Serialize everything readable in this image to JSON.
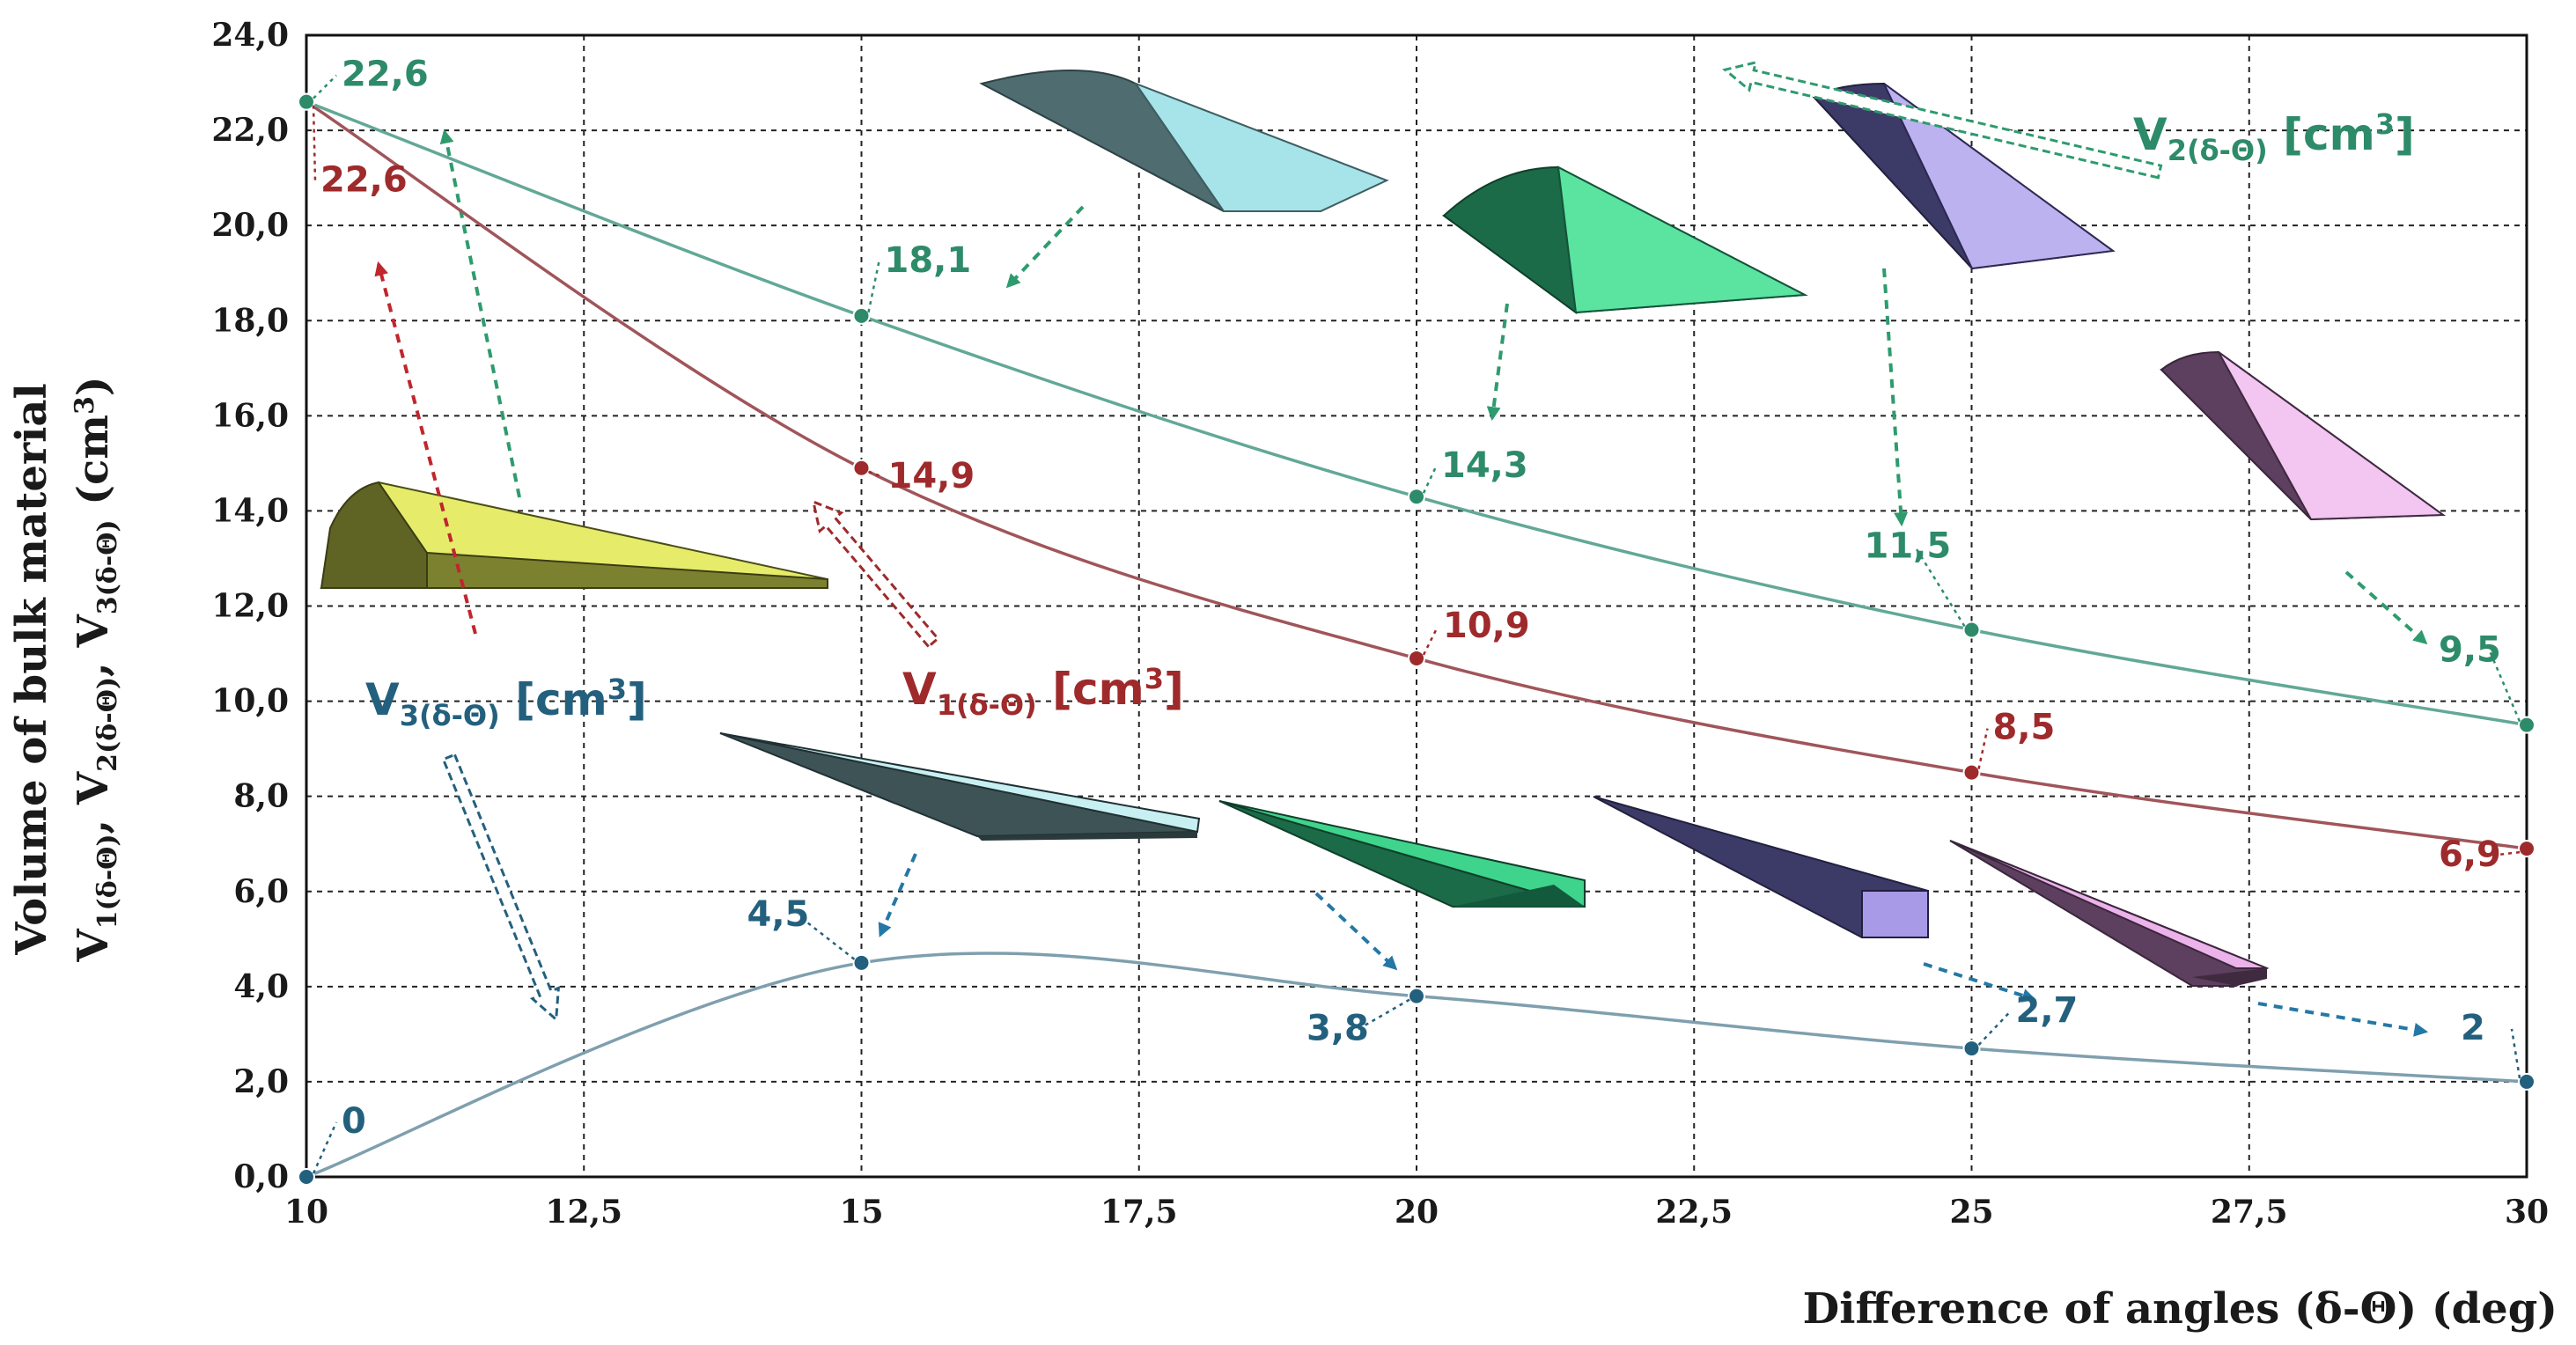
{
  "chart_data": {
    "type": "line",
    "xlabel": "Difference of angles (δ-Θ) (deg)",
    "ylabel_line1": "Volume of bulk material",
    "ylabel_line2": {
      "v1": "V",
      "v1_sub": "1(δ-Θ)",
      "sep1": ", V",
      "v2_sub": "2(δ-Θ)",
      "sep2": ", V",
      "v3_sub": "3(δ-Θ)",
      "unit_open": " (cm",
      "unit_sup": "3",
      "unit_close": ")"
    },
    "xlim": [
      10,
      30
    ],
    "ylim": [
      0,
      24
    ],
    "x_ticks": [
      "10",
      "12,5",
      "15",
      "17,5",
      "20",
      "22,5",
      "25",
      "27,5",
      "30"
    ],
    "y_ticks": [
      "0,0",
      "2,0",
      "4,0",
      "6,0",
      "8,0",
      "10,0",
      "12,0",
      "14,0",
      "16,0",
      "18,0",
      "20,0",
      "22,0",
      "24,0"
    ],
    "grid": true,
    "series": [
      {
        "key": "v1",
        "name": "V1(δ-Θ) [cm3]",
        "label_main": "V",
        "label_sub": "1(δ-Θ)",
        "label_unit": " [cm",
        "label_sup": "3",
        "label_close": "]",
        "color": "#9e2a2b",
        "x": [
          10,
          15,
          20,
          25,
          30
        ],
        "y": [
          22.6,
          14.9,
          10.9,
          8.5,
          6.9
        ],
        "labels": [
          "22,6",
          "14,9",
          "10,9",
          "8,5",
          "6,9"
        ]
      },
      {
        "key": "v2",
        "name": "V2(δ-Θ) [cm3]",
        "label_main": "V",
        "label_sub": "2(δ-Θ)",
        "label_unit": " [cm",
        "label_sup": "3",
        "label_close": "]",
        "color": "#2e8b6a",
        "x": [
          10,
          15,
          20,
          25,
          30
        ],
        "y": [
          22.6,
          18.1,
          14.3,
          11.5,
          9.5
        ],
        "labels": [
          "22,6",
          "18,1",
          "14,3",
          "11,5",
          "9,5"
        ]
      },
      {
        "key": "v3",
        "name": "V3(δ-Θ) [cm3]",
        "label_main": "V",
        "label_sub": "3(δ-Θ)",
        "label_unit": " [cm",
        "label_sup": "3",
        "label_close": "]",
        "color": "#23607e",
        "x": [
          10,
          15,
          20,
          25,
          30
        ],
        "y": [
          0,
          4.5,
          3.8,
          2.7,
          2
        ],
        "labels": [
          "0",
          "4,5",
          "3,8",
          "2,7",
          "2"
        ]
      }
    ],
    "shape_colors": {
      "yellow_top": "#e6ec6a",
      "yellow_side": "#5f6324",
      "cyan_top": "#c8f0f3",
      "cyan_side": "#4f6c70",
      "green_top": "#3fd48c",
      "green_side": "#1b6a48",
      "purple_top": "#a89ae6",
      "purple_side": "#3c3a66",
      "pink_top": "#ecb2ea",
      "pink_side": "#5d3f5f"
    }
  }
}
